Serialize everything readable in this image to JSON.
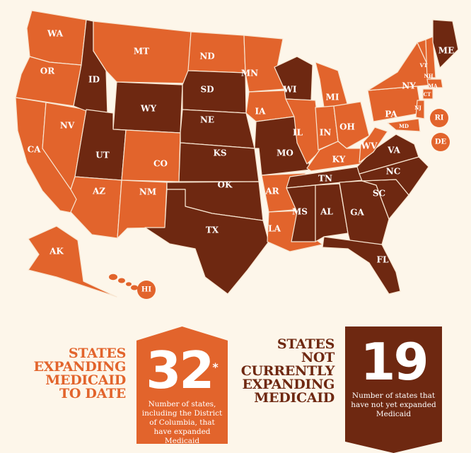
{
  "colors": {
    "expanded": "#e2642c",
    "not_expanded": "#6e2811",
    "background": "#fdf6ea"
  },
  "states": [
    {
      "abbr": "WA",
      "status": "expanded"
    },
    {
      "abbr": "OR",
      "status": "expanded"
    },
    {
      "abbr": "CA",
      "status": "expanded"
    },
    {
      "abbr": "NV",
      "status": "expanded"
    },
    {
      "abbr": "ID",
      "status": "not_expanded"
    },
    {
      "abbr": "MT",
      "status": "expanded"
    },
    {
      "abbr": "WY",
      "status": "not_expanded"
    },
    {
      "abbr": "UT",
      "status": "not_expanded"
    },
    {
      "abbr": "CO",
      "status": "expanded"
    },
    {
      "abbr": "AZ",
      "status": "expanded"
    },
    {
      "abbr": "NM",
      "status": "expanded"
    },
    {
      "abbr": "ND",
      "status": "expanded"
    },
    {
      "abbr": "SD",
      "status": "not_expanded"
    },
    {
      "abbr": "NE",
      "status": "not_expanded"
    },
    {
      "abbr": "KS",
      "status": "not_expanded"
    },
    {
      "abbr": "OK",
      "status": "not_expanded"
    },
    {
      "abbr": "TX",
      "status": "not_expanded"
    },
    {
      "abbr": "MN",
      "status": "expanded"
    },
    {
      "abbr": "IA",
      "status": "expanded"
    },
    {
      "abbr": "MO",
      "status": "not_expanded"
    },
    {
      "abbr": "AR",
      "status": "expanded"
    },
    {
      "abbr": "LA",
      "status": "expanded"
    },
    {
      "abbr": "WI",
      "status": "not_expanded"
    },
    {
      "abbr": "IL",
      "status": "expanded"
    },
    {
      "abbr": "MI",
      "status": "expanded"
    },
    {
      "abbr": "IN",
      "status": "expanded"
    },
    {
      "abbr": "OH",
      "status": "expanded"
    },
    {
      "abbr": "KY",
      "status": "expanded"
    },
    {
      "abbr": "TN",
      "status": "not_expanded"
    },
    {
      "abbr": "MS",
      "status": "not_expanded"
    },
    {
      "abbr": "AL",
      "status": "not_expanded"
    },
    {
      "abbr": "GA",
      "status": "not_expanded"
    },
    {
      "abbr": "FL",
      "status": "not_expanded"
    },
    {
      "abbr": "SC",
      "status": "not_expanded"
    },
    {
      "abbr": "NC",
      "status": "not_expanded"
    },
    {
      "abbr": "VA",
      "status": "not_expanded"
    },
    {
      "abbr": "WV",
      "status": "expanded"
    },
    {
      "abbr": "PA",
      "status": "expanded"
    },
    {
      "abbr": "NY",
      "status": "expanded"
    },
    {
      "abbr": "VT",
      "status": "expanded"
    },
    {
      "abbr": "NH",
      "status": "expanded"
    },
    {
      "abbr": "MA",
      "status": "expanded"
    },
    {
      "abbr": "CT",
      "status": "expanded"
    },
    {
      "abbr": "NJ",
      "status": "expanded"
    },
    {
      "abbr": "MD",
      "status": "expanded"
    },
    {
      "abbr": "ME",
      "status": "not_expanded"
    },
    {
      "abbr": "RI",
      "status": "expanded"
    },
    {
      "abbr": "DE",
      "status": "expanded"
    },
    {
      "abbr": "AK",
      "status": "expanded"
    },
    {
      "abbr": "HI",
      "status": "expanded"
    }
  ],
  "legend": {
    "expanding": {
      "heading_lines": [
        "STATES",
        "EXPANDING",
        "MEDICAID",
        "TO DATE"
      ],
      "count": "32",
      "footnote_mark": "*",
      "description": "Number of states, including the District of Columbia, that have expanded Medicaid"
    },
    "not_expanding": {
      "heading_lines": [
        "STATES",
        "NOT",
        "CURRENTLY",
        "EXPANDING",
        "MEDICAID"
      ],
      "count": "19",
      "description": "Number of states that have not yet expanded Medicaid"
    }
  }
}
